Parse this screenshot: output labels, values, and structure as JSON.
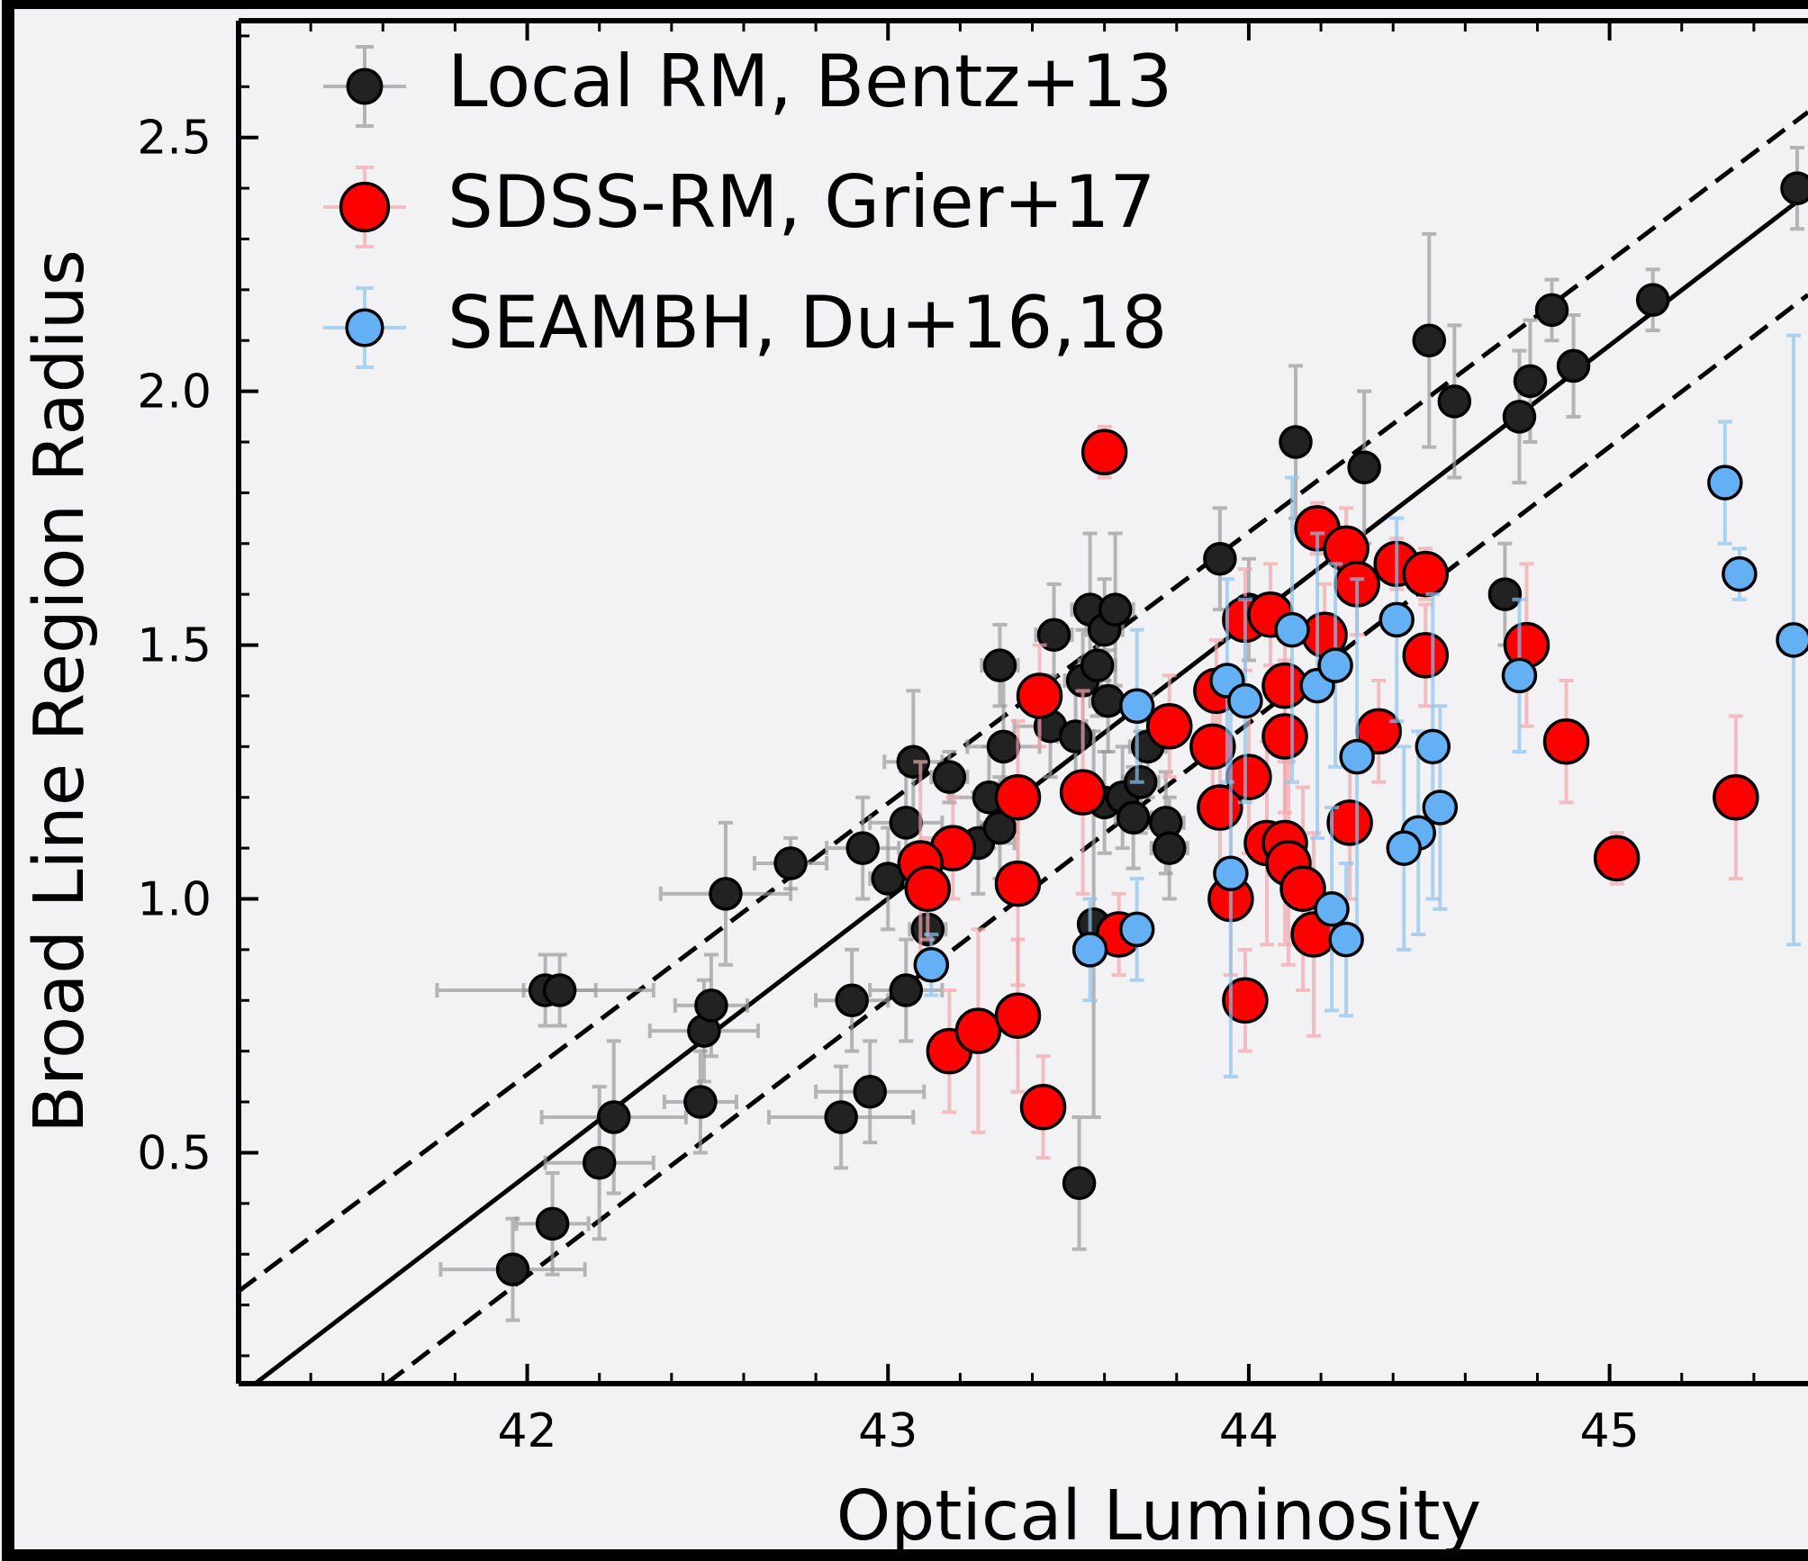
{
  "chart_data": {
    "type": "scatter",
    "xlabel": "Optical Luminosity",
    "ylabel": "Broad Line Region Radius",
    "xlim": [
      41.2,
      45.55
    ],
    "ylim": [
      0.045,
      2.73
    ],
    "xticks": [
      42,
      43,
      44,
      45
    ],
    "yticks": [
      0.5,
      {
        "value": 1,
        "label": "1.0"
      },
      1.5,
      {
        "value": 2,
        "label": "2.0"
      },
      2.5
    ],
    "xminorticks": [
      41.4,
      41.6,
      41.8,
      42.2,
      42.4,
      42.6,
      42.8,
      43.2,
      43.4,
      43.6,
      43.8,
      44.2,
      44.4,
      44.6,
      44.8,
      45.2,
      45.4
    ],
    "yminorticks": [
      0.1,
      0.2,
      0.3,
      0.4,
      0.6,
      0.7,
      0.8,
      0.9,
      1.1,
      1.2,
      1.3,
      1.4,
      1.6,
      1.7,
      1.8,
      1.9,
      2.1,
      2.2,
      2.3,
      2.4,
      2.6,
      2.7
    ],
    "legend": "upper left",
    "lines": [
      {
        "style": "solid",
        "color": "#000000",
        "x": [
          41.2,
          45.55
        ],
        "y": [
          0.02,
          2.39
        ]
      },
      {
        "style": "dashed",
        "color": "#000000",
        "x": [
          41.2,
          45.55
        ],
        "y": [
          0.227,
          2.55
        ]
      },
      {
        "style": "dashed",
        "color": "#000000",
        "x": [
          41.61,
          45.55
        ],
        "y": [
          0.045,
          2.19
        ]
      }
    ],
    "series": [
      {
        "name": "Local RM, Bentz+13",
        "color": "#222222",
        "ecolor": "#9a9a9a",
        "size": 17,
        "x": [
          41.96,
          42.07,
          42.2,
          42.24,
          42.05,
          42.09,
          42.48,
          42.49,
          42.51,
          42.55,
          42.73,
          42.87,
          42.9,
          42.93,
          42.95,
          43.0,
          43.05,
          43.05,
          43.07,
          43.11,
          43.17,
          43.25,
          43.28,
          43.31,
          43.32,
          43.31,
          43.45,
          43.46,
          43.52,
          43.54,
          43.56,
          43.58,
          43.6,
          43.63,
          43.61,
          43.53,
          43.57,
          43.6,
          43.65,
          43.68,
          43.7,
          43.72,
          43.77,
          43.78,
          43.92,
          44.0,
          44.13,
          44.32,
          44.5,
          44.57,
          44.71,
          44.75,
          44.78,
          44.84,
          44.9,
          45.12,
          45.52
        ],
        "values": [
          0.27,
          0.36,
          0.48,
          0.57,
          0.82,
          0.82,
          0.6,
          0.74,
          0.79,
          1.01,
          1.07,
          0.57,
          0.8,
          1.1,
          0.62,
          1.04,
          0.82,
          1.15,
          1.27,
          0.94,
          1.24,
          1.11,
          1.2,
          1.14,
          1.3,
          1.46,
          1.34,
          1.52,
          1.32,
          1.43,
          1.57,
          1.46,
          1.53,
          1.57,
          1.39,
          0.44,
          0.95,
          1.19,
          1.2,
          1.16,
          1.23,
          1.3,
          1.15,
          1.1,
          1.67,
          1.57,
          1.9,
          1.85,
          2.1,
          1.98,
          1.6,
          1.95,
          2.02,
          2.16,
          2.05,
          2.18,
          2.4
        ],
        "xerr": [
          0.2,
          0.1,
          0.15,
          0.2,
          0.3,
          0.1,
          0.1,
          0.15,
          0.1,
          0.18,
          0.1,
          0.2,
          0.1,
          0.1,
          0.15,
          0.05,
          0.1,
          0.1,
          0.08,
          0.05,
          0.05,
          0.1,
          0.1,
          0.05,
          0.1,
          0.05,
          0.1,
          0.05,
          0.05,
          0.05,
          0.05,
          0.05,
          0.05,
          0.05,
          0.05,
          0.03,
          0.03,
          0.05,
          0.05,
          0.05,
          0.05,
          0.05,
          0.05,
          0.05,
          0.03,
          0.03,
          0.03,
          0.03,
          0.03,
          0.03,
          0.03,
          0.03,
          0.03,
          0.03,
          0.03,
          0.03,
          0.03
        ],
        "yerr": [
          0.1,
          0.1,
          0.15,
          0.15,
          0.07,
          0.07,
          0.1,
          0.1,
          0.1,
          0.14,
          0.05,
          0.1,
          0.1,
          0.1,
          0.1,
          0.1,
          0.1,
          0.1,
          0.14,
          0.08,
          0.05,
          0.1,
          0.1,
          0.1,
          0.15,
          0.08,
          0.1,
          0.1,
          0.1,
          0.1,
          0.15,
          0.1,
          0.1,
          0.15,
          0.1,
          0.13,
          0.38,
          0.1,
          0.1,
          0.1,
          0.1,
          0.1,
          0.1,
          0.1,
          0.1,
          0.1,
          0.15,
          0.15,
          0.21,
          0.15,
          0.1,
          0.13,
          0.12,
          0.06,
          0.1,
          0.06,
          0.08
        ]
      },
      {
        "name": "SDSS-RM, Grier+17",
        "color": "#ff0000",
        "ecolor": "#f4a6ab",
        "size": 24,
        "x": [
          43.6,
          43.42,
          43.36,
          43.36,
          43.18,
          43.09,
          43.11,
          43.17,
          43.25,
          43.36,
          43.43,
          43.54,
          43.64,
          43.78,
          43.9,
          43.91,
          43.92,
          44.0,
          43.95,
          43.99,
          43.99,
          44.06,
          44.1,
          44.1,
          44.05,
          44.1,
          44.11,
          44.15,
          44.18,
          44.19,
          44.21,
          44.27,
          44.3,
          44.28,
          44.36,
          44.41,
          44.49,
          44.49,
          44.77,
          44.88,
          45.02,
          45.35
        ],
        "values": [
          1.88,
          1.4,
          1.2,
          1.03,
          1.1,
          1.07,
          1.02,
          0.7,
          0.74,
          0.77,
          0.59,
          1.21,
          0.93,
          1.34,
          1.3,
          1.41,
          1.18,
          1.24,
          1.0,
          0.8,
          1.55,
          1.56,
          1.42,
          1.32,
          1.11,
          1.11,
          1.07,
          1.02,
          0.93,
          1.73,
          1.52,
          1.69,
          1.62,
          1.15,
          1.33,
          1.66,
          1.64,
          1.48,
          1.5,
          1.31,
          1.08,
          1.2
        ],
        "xerr": [
          0.02,
          0.02,
          0.02,
          0.02,
          0.02,
          0.02,
          0.02,
          0.02,
          0.02,
          0.02,
          0.02,
          0.02,
          0.02,
          0.02,
          0.02,
          0.02,
          0.02,
          0.02,
          0.02,
          0.02,
          0.02,
          0.02,
          0.02,
          0.02,
          0.02,
          0.02,
          0.02,
          0.02,
          0.02,
          0.02,
          0.02,
          0.02,
          0.02,
          0.02,
          0.02,
          0.02,
          0.02,
          0.02,
          0.02,
          0.02,
          0.02,
          0.02
        ],
        "yerr": [
          0.05,
          0.1,
          0.15,
          0.2,
          0.1,
          0.2,
          0.1,
          0.12,
          0.2,
          0.15,
          0.1,
          0.2,
          0.08,
          0.1,
          0.1,
          0.1,
          0.2,
          0.15,
          0.15,
          0.1,
          0.1,
          0.1,
          0.15,
          0.15,
          0.2,
          0.2,
          0.2,
          0.2,
          0.2,
          0.05,
          0.1,
          0.08,
          0.1,
          0.15,
          0.1,
          0.05,
          0.05,
          0.1,
          0.16,
          0.12,
          0.05,
          0.16
        ]
      },
      {
        "name": "SEAMBH, Du+16,18",
        "color": "#64b0f5",
        "ecolor": "#8ec4f0",
        "size": 18,
        "x": [
          43.69,
          43.69,
          43.56,
          43.12,
          43.94,
          43.99,
          43.95,
          44.12,
          44.19,
          44.24,
          44.3,
          44.23,
          44.27,
          44.41,
          44.51,
          44.47,
          44.43,
          44.53,
          44.75,
          45.32,
          45.36,
          45.51
        ],
        "values": [
          1.38,
          0.94,
          0.9,
          0.87,
          1.43,
          1.39,
          1.05,
          1.53,
          1.42,
          1.46,
          1.28,
          0.98,
          0.92,
          1.55,
          1.3,
          1.13,
          1.1,
          1.18,
          1.44,
          1.82,
          1.64,
          1.51
        ],
        "xerr": [
          0.02,
          0.02,
          0.02,
          0.02,
          0.02,
          0.02,
          0.02,
          0.02,
          0.02,
          0.02,
          0.02,
          0.02,
          0.02,
          0.02,
          0.02,
          0.02,
          0.02,
          0.02,
          0.02,
          0.02,
          0.02,
          0.02
        ],
        "yerr": [
          0.15,
          0.1,
          0.1,
          0.06,
          0.2,
          0.2,
          0.4,
          0.3,
          0.3,
          0.2,
          0.35,
          0.2,
          0.15,
          0.2,
          0.3,
          0.2,
          0.2,
          0.2,
          0.15,
          0.12,
          0.05,
          0.6
        ]
      }
    ]
  }
}
